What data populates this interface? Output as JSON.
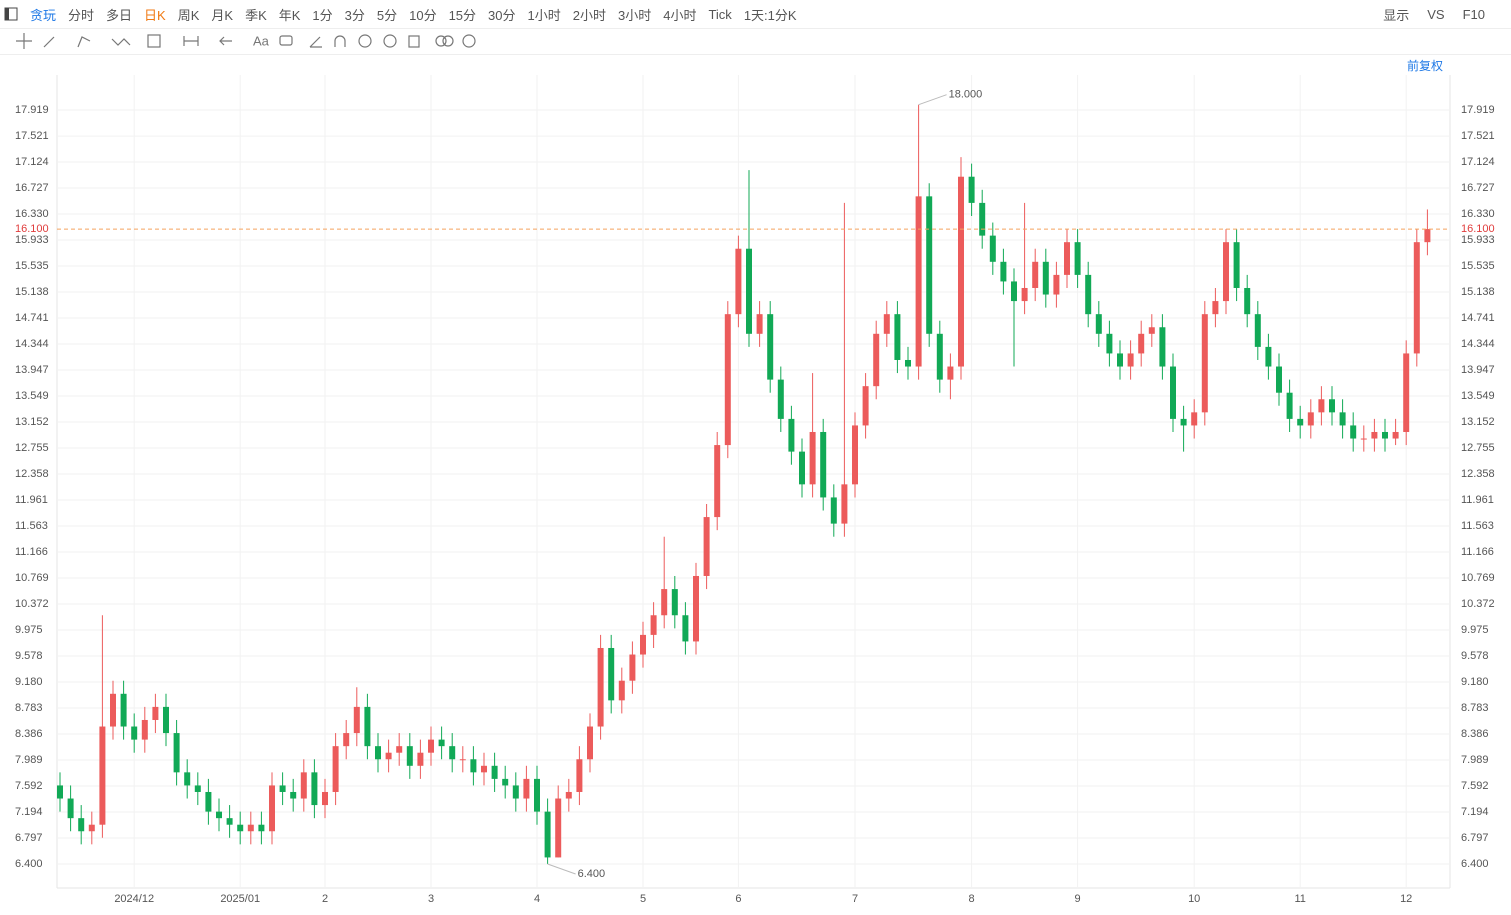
{
  "toolbar": {
    "tabs": [
      "贪玩",
      "分时",
      "多日",
      "日K",
      "周K",
      "月K",
      "季K",
      "年K",
      "1分",
      "3分",
      "5分",
      "10分",
      "15分",
      "30分",
      "1小时",
      "2小时",
      "3小时",
      "4小时",
      "Tick",
      "1天:1分K"
    ],
    "right": [
      "显示",
      "VS",
      "F10"
    ],
    "text_tool": "Aa"
  },
  "chart_data": {
    "type": "candlestick",
    "adjust_label": "前复权",
    "categories": [
      null,
      null,
      null,
      null,
      null,
      null,
      null,
      "2024/12",
      null,
      null,
      null,
      null,
      null,
      null,
      null,
      null,
      null,
      "2025/01",
      null,
      null,
      null,
      null,
      null,
      null,
      null,
      "2",
      null,
      null,
      null,
      null,
      null,
      null,
      null,
      null,
      null,
      "3",
      null,
      null,
      null,
      null,
      null,
      null,
      null,
      null,
      null,
      "4",
      null,
      null,
      null,
      null,
      null,
      null,
      null,
      null,
      null,
      "5",
      null,
      null,
      null,
      null,
      null,
      null,
      null,
      null,
      "6",
      null,
      null,
      null,
      null,
      null,
      null,
      null,
      null,
      null,
      null,
      "7",
      null,
      null,
      null,
      null,
      null,
      null,
      null,
      null,
      null,
      null,
      "8",
      null,
      null,
      null,
      null,
      null,
      null,
      null,
      null,
      null,
      "9",
      null,
      null,
      null,
      null,
      null,
      null,
      null,
      null,
      null,
      null,
      "10",
      null,
      null,
      null,
      null,
      null,
      null,
      null,
      null,
      null,
      "11",
      null,
      null,
      null,
      null,
      null,
      null,
      null,
      null,
      null,
      "12",
      null,
      null
    ],
    "open": [
      7.6,
      7.4,
      7.1,
      6.9,
      7.0,
      8.5,
      9.0,
      8.5,
      8.3,
      8.6,
      8.8,
      8.4,
      7.8,
      7.6,
      7.5,
      7.2,
      7.1,
      7.0,
      6.9,
      7.0,
      6.9,
      7.6,
      7.5,
      7.4,
      7.8,
      7.3,
      7.5,
      8.2,
      8.4,
      8.8,
      8.2,
      8.0,
      8.1,
      8.2,
      7.9,
      8.1,
      8.3,
      8.2,
      8.0,
      8.0,
      7.8,
      7.9,
      7.7,
      7.6,
      7.4,
      7.7,
      7.2,
      6.5,
      7.4,
      7.5,
      8.0,
      8.5,
      9.7,
      8.9,
      9.2,
      9.6,
      9.9,
      10.2,
      10.6,
      10.2,
      9.8,
      10.8,
      11.7,
      12.8,
      14.8,
      15.8,
      14.5,
      14.8,
      13.8,
      13.2,
      12.7,
      12.2,
      13.0,
      12.0,
      11.6,
      12.2,
      13.1,
      13.7,
      14.5,
      14.8,
      14.1,
      14.0,
      16.6,
      14.5,
      13.8,
      14.0,
      16.9,
      16.5,
      16.0,
      15.6,
      15.3,
      15.0,
      15.2,
      15.6,
      15.1,
      15.4,
      15.9,
      15.4,
      14.8,
      14.5,
      14.2,
      14.0,
      14.2,
      14.5,
      14.6,
      14.0,
      13.2,
      13.1,
      13.3,
      14.8,
      15.0,
      15.9,
      15.2,
      14.8,
      14.3,
      14.0,
      13.6,
      13.2,
      13.1,
      13.3,
      13.5,
      13.3,
      13.1,
      12.9,
      12.9,
      13.0,
      12.9,
      13.0,
      14.2,
      15.9
    ],
    "high": [
      7.8,
      7.6,
      7.3,
      7.2,
      10.2,
      9.2,
      9.2,
      8.7,
      8.8,
      9.0,
      9.0,
      8.6,
      8.0,
      7.8,
      7.7,
      7.4,
      7.3,
      7.2,
      7.2,
      7.2,
      7.8,
      7.8,
      7.7,
      8.0,
      8.0,
      7.7,
      8.4,
      8.6,
      9.1,
      9.0,
      8.4,
      8.3,
      8.4,
      8.4,
      8.3,
      8.5,
      8.5,
      8.4,
      8.2,
      8.2,
      8.1,
      8.1,
      7.9,
      7.8,
      7.9,
      7.9,
      7.4,
      7.6,
      7.7,
      8.2,
      8.7,
      9.9,
      9.9,
      9.4,
      9.8,
      10.1,
      10.4,
      11.4,
      10.8,
      10.4,
      11.0,
      11.9,
      13.0,
      15.0,
      16.0,
      17.0,
      15.0,
      15.0,
      14.0,
      13.4,
      12.9,
      13.9,
      13.2,
      12.2,
      16.5,
      13.3,
      13.9,
      14.7,
      15.0,
      15.0,
      14.3,
      18.0,
      16.8,
      14.7,
      14.2,
      17.2,
      17.1,
      16.7,
      16.2,
      15.8,
      15.5,
      16.5,
      15.8,
      15.8,
      15.6,
      16.1,
      16.1,
      15.6,
      15.0,
      14.7,
      14.4,
      14.4,
      14.7,
      14.8,
      14.8,
      14.2,
      13.4,
      13.5,
      15.0,
      15.2,
      16.1,
      16.1,
      15.4,
      15.0,
      14.5,
      14.2,
      13.8,
      13.4,
      13.5,
      13.7,
      13.7,
      13.5,
      13.3,
      13.1,
      13.2,
      13.2,
      13.2,
      14.4,
      16.1,
      16.4
    ],
    "low": [
      7.2,
      6.9,
      6.7,
      6.7,
      6.8,
      8.3,
      8.3,
      8.1,
      8.1,
      8.4,
      8.2,
      7.6,
      7.4,
      7.3,
      7.0,
      6.9,
      6.8,
      6.7,
      6.7,
      6.7,
      6.7,
      7.3,
      7.2,
      7.2,
      7.1,
      7.1,
      7.3,
      8.0,
      8.2,
      8.0,
      7.8,
      7.8,
      7.9,
      7.7,
      7.7,
      7.9,
      8.0,
      7.8,
      7.8,
      7.6,
      7.6,
      7.5,
      7.4,
      7.2,
      7.2,
      7.0,
      6.4,
      6.5,
      7.2,
      7.3,
      7.8,
      8.3,
      8.7,
      8.7,
      9.0,
      9.4,
      9.7,
      10.0,
      10.0,
      9.6,
      9.6,
      10.6,
      11.5,
      12.6,
      14.6,
      14.3,
      14.3,
      13.6,
      13.0,
      12.5,
      12.0,
      12.0,
      11.8,
      11.4,
      11.4,
      12.0,
      12.9,
      13.5,
      14.3,
      13.9,
      13.8,
      13.8,
      14.3,
      13.6,
      13.5,
      13.8,
      16.3,
      15.8,
      15.4,
      15.1,
      14.0,
      14.8,
      15.0,
      14.9,
      14.9,
      15.2,
      15.2,
      14.6,
      14.3,
      14.0,
      13.8,
      13.8,
      14.0,
      14.3,
      13.8,
      13.0,
      12.7,
      12.9,
      13.1,
      14.6,
      14.8,
      15.0,
      14.6,
      14.1,
      13.8,
      13.4,
      13.0,
      12.9,
      12.9,
      13.1,
      13.1,
      12.9,
      12.7,
      12.7,
      12.7,
      12.7,
      12.8,
      12.8,
      14.0,
      15.7
    ],
    "close": [
      7.4,
      7.1,
      6.9,
      7.0,
      8.5,
      9.0,
      8.5,
      8.3,
      8.6,
      8.8,
      8.4,
      7.8,
      7.6,
      7.5,
      7.2,
      7.1,
      7.0,
      6.9,
      7.0,
      6.9,
      7.6,
      7.5,
      7.4,
      7.8,
      7.3,
      7.5,
      8.2,
      8.4,
      8.8,
      8.2,
      8.0,
      8.1,
      8.2,
      7.9,
      8.1,
      8.3,
      8.2,
      8.0,
      8.0,
      7.8,
      7.9,
      7.7,
      7.6,
      7.4,
      7.7,
      7.2,
      6.5,
      7.4,
      7.5,
      8.0,
      8.5,
      9.7,
      8.9,
      9.2,
      9.6,
      9.9,
      10.2,
      10.6,
      10.2,
      9.8,
      10.8,
      11.7,
      12.8,
      14.8,
      15.8,
      14.5,
      14.8,
      13.8,
      13.2,
      12.7,
      12.2,
      13.0,
      12.0,
      11.6,
      12.2,
      13.1,
      13.7,
      14.5,
      14.8,
      14.1,
      14.0,
      16.6,
      14.5,
      13.8,
      14.0,
      16.9,
      16.5,
      16.0,
      15.6,
      15.3,
      15.0,
      15.2,
      15.6,
      15.1,
      15.4,
      15.9,
      15.4,
      14.8,
      14.5,
      14.2,
      14.0,
      14.2,
      14.5,
      14.6,
      14.0,
      13.2,
      13.1,
      13.3,
      14.8,
      15.0,
      15.9,
      15.2,
      14.8,
      14.3,
      14.0,
      13.6,
      13.2,
      13.1,
      13.3,
      13.5,
      13.3,
      13.1,
      12.9,
      12.9,
      13.0,
      12.9,
      13.0,
      14.2,
      15.9,
      16.1
    ],
    "up_color": "#ec5b5b",
    "down_color": "#11a956",
    "ylim": [
      6.033,
      18.454
    ],
    "yticks": [
      {
        "value": 6.4,
        "label": "6.400"
      },
      6.797,
      7.194,
      7.592,
      7.989,
      8.386,
      8.783,
      {
        "value": 9.18,
        "label": "9.180"
      },
      9.578,
      9.975,
      10.372,
      10.769,
      11.166,
      11.563,
      11.961,
      12.358,
      12.755,
      13.152,
      13.549,
      13.947,
      14.344,
      14.741,
      15.138,
      15.535,
      15.933,
      {
        "value": 16.33,
        "label": "16.330"
      },
      16.727,
      17.124,
      17.521,
      17.919
    ],
    "grid": true,
    "price_line": {
      "value": 16.1,
      "label": "16.100",
      "color": "#f5a25d"
    },
    "max_label": {
      "value": 18,
      "label": "18.000"
    },
    "min_label": {
      "value": 6.4,
      "label": "6.400"
    }
  }
}
